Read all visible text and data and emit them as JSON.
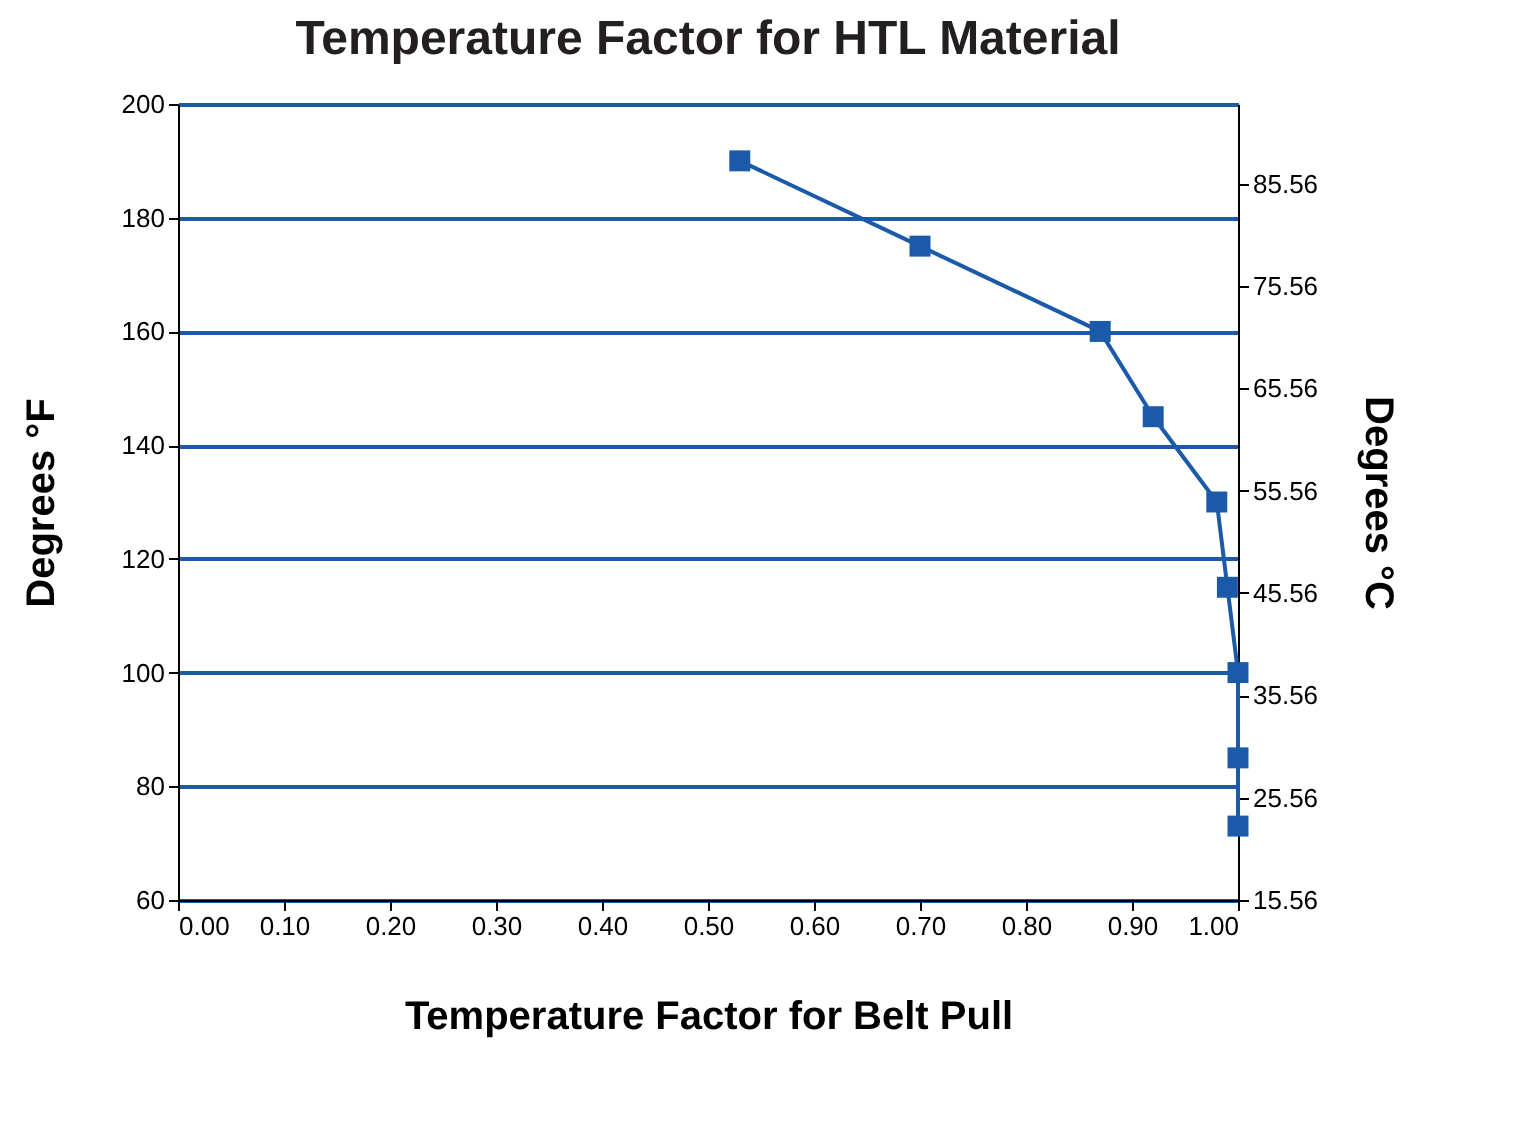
{
  "chart_data": {
    "type": "line",
    "title": "Temperature Factor for HTL Material",
    "xlabel": "Temperature Factor for Belt Pull",
    "ylabel": "Degrees °F",
    "y2label": "Degrees °C",
    "x": [
      0.53,
      0.7,
      0.87,
      0.92,
      0.98,
      0.99,
      1.0,
      1.0,
      1.0
    ],
    "series": [
      {
        "color": "#1a5aa8",
        "values": [
          190,
          175,
          160,
          145,
          130,
          115,
          100,
          85,
          73
        ]
      }
    ],
    "xlim": [
      0,
      1
    ],
    "xticks": [
      {
        "value": 0,
        "label": "0.00"
      },
      {
        "value": 0.1,
        "label": "0.10"
      },
      {
        "value": 0.2,
        "label": "0.20"
      },
      {
        "value": 0.3,
        "label": "0.30"
      },
      {
        "value": 0.4,
        "label": "0.40"
      },
      {
        "value": 0.5,
        "label": "0.50"
      },
      {
        "value": 0.6,
        "label": "0.60"
      },
      {
        "value": 0.7,
        "label": "0.70"
      },
      {
        "value": 0.8,
        "label": "0.80"
      },
      {
        "value": 0.9,
        "label": "0.90"
      },
      {
        "value": 1,
        "label": "1.00"
      }
    ],
    "ylim": [
      60,
      200
    ],
    "yticks": [
      60,
      80,
      100,
      120,
      140,
      160,
      180,
      200
    ],
    "y2lim": [
      15.56,
      93.33
    ],
    "y2ticks": [
      15.56,
      25.56,
      35.56,
      45.56,
      55.56,
      65.56,
      75.56,
      85.56
    ],
    "grid": "y",
    "marker": "square",
    "line_style": "solid"
  }
}
